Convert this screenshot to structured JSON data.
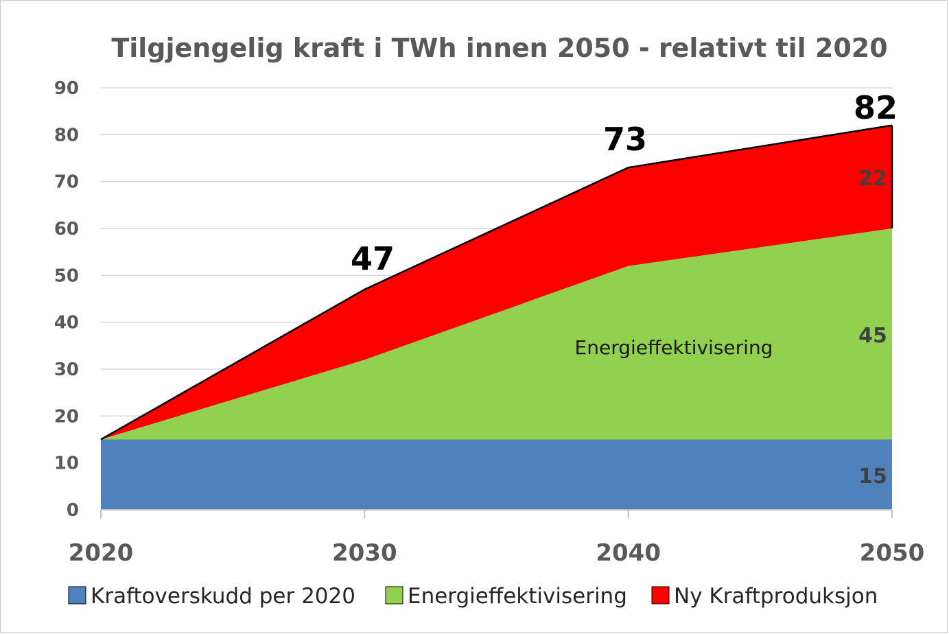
{
  "chart_data": {
    "type": "area",
    "stacked": true,
    "title": "Tilgjengelig kraft i TWh innen 2050 - relativt til 2020",
    "xlabel": "",
    "ylabel": "",
    "x": [
      "2020",
      "2030",
      "2040",
      "2050"
    ],
    "ylim": [
      0,
      90
    ],
    "yticks": [
      0,
      10,
      20,
      30,
      40,
      50,
      60,
      70,
      80,
      90
    ],
    "grid": true,
    "legend_position": "bottom",
    "series": [
      {
        "name": "Kraftoverskudd per 2020",
        "values": [
          15,
          15,
          15,
          15
        ],
        "color": "#4f81bd"
      },
      {
        "name": "Energieffektivisering",
        "values": [
          0,
          17,
          37,
          45
        ],
        "color": "#92d050"
      },
      {
        "name": "Ny Kraftproduksjon",
        "values": [
          0,
          15,
          21,
          22
        ],
        "color": "#ff0000"
      }
    ],
    "totals": [
      "47",
      "73",
      "82"
    ],
    "segment_labels": [
      "15",
      "45",
      "22"
    ],
    "area_annotation": "Energieffektivisering"
  }
}
